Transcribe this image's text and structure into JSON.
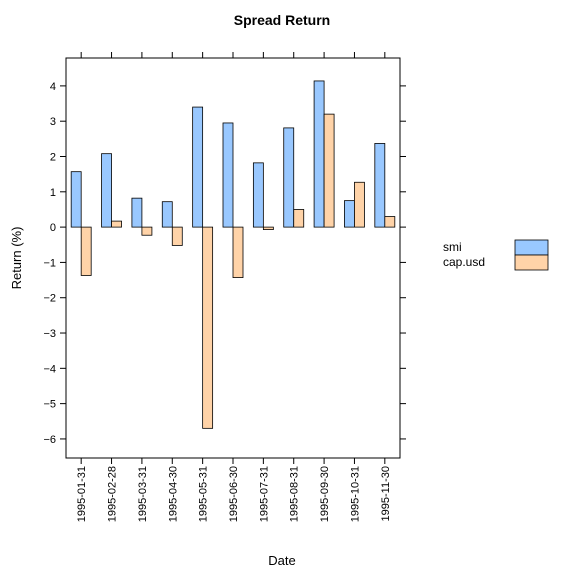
{
  "chart_data": {
    "type": "bar",
    "title": "Spread Return",
    "x_label": "Date",
    "y_label": "Return (%)",
    "categories": [
      "1995-01-31",
      "1995-02-28",
      "1995-03-31",
      "1995-04-30",
      "1995-05-31",
      "1995-06-30",
      "1995-07-31",
      "1995-08-31",
      "1995-09-30",
      "1995-10-31",
      "1995-11-30"
    ],
    "series": [
      {
        "name": "smi",
        "color": "#99c8ff",
        "values": [
          1.57,
          2.08,
          0.82,
          0.72,
          3.4,
          2.95,
          1.82,
          2.81,
          4.14,
          0.75,
          2.37
        ]
      },
      {
        "name": "cap.usd",
        "color": "#ffd3a8",
        "values": [
          -1.37,
          0.17,
          -0.23,
          -0.52,
          -5.7,
          -1.43,
          -0.07,
          0.5,
          3.2,
          1.27,
          0.3
        ]
      }
    ],
    "ylim": [
      -6.54,
      4.79
    ],
    "yticks": [
      {
        "value": -6,
        "label": "−6"
      },
      {
        "value": -5,
        "label": "−5"
      },
      {
        "value": -4,
        "label": "−4"
      },
      {
        "value": -3,
        "label": "−3"
      },
      {
        "value": -2,
        "label": "−2"
      },
      {
        "value": -1,
        "label": "−1"
      },
      0,
      1,
      2,
      3,
      4
    ],
    "legend": "right"
  }
}
